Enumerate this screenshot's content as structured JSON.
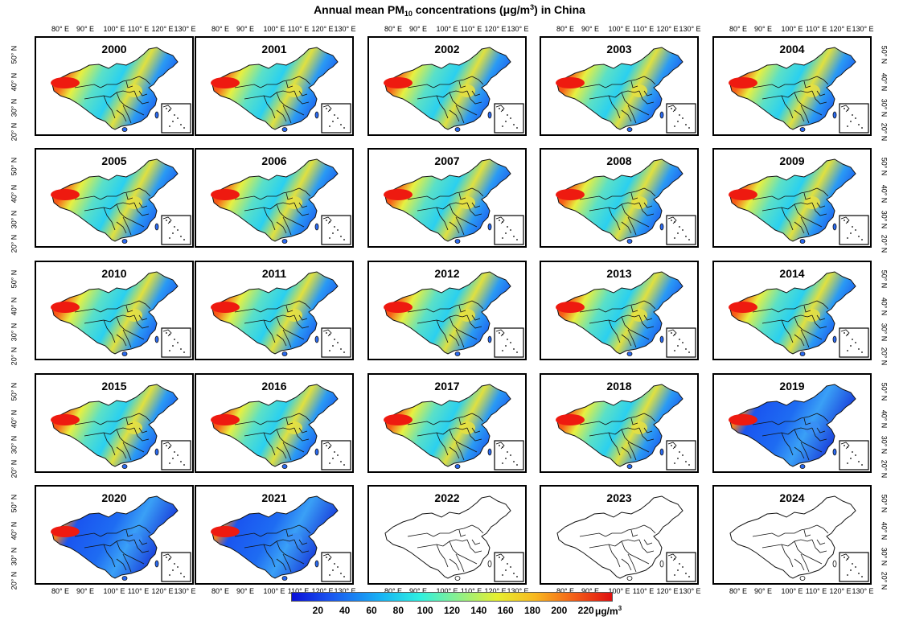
{
  "title": {
    "prefix": "Annual mean PM",
    "subscript": "10",
    "middle": " concentrations (μg/m",
    "superscript": "3",
    "suffix": ") in China"
  },
  "longitude_labels": [
    "80° E",
    "90° E",
    "100° E",
    "110° E",
    "120° E",
    "130° E"
  ],
  "latitude_labels": [
    "50° N",
    "40° N",
    "30° N",
    "20° N"
  ],
  "panels": [
    {
      "year": "2000",
      "has_data": true
    },
    {
      "year": "2001",
      "has_data": true
    },
    {
      "year": "2002",
      "has_data": true
    },
    {
      "year": "2003",
      "has_data": true
    },
    {
      "year": "2004",
      "has_data": true
    },
    {
      "year": "2005",
      "has_data": true
    },
    {
      "year": "2006",
      "has_data": true
    },
    {
      "year": "2007",
      "has_data": true
    },
    {
      "year": "2008",
      "has_data": true
    },
    {
      "year": "2009",
      "has_data": true
    },
    {
      "year": "2010",
      "has_data": true
    },
    {
      "year": "2011",
      "has_data": true
    },
    {
      "year": "2012",
      "has_data": true
    },
    {
      "year": "2013",
      "has_data": true
    },
    {
      "year": "2014",
      "has_data": true
    },
    {
      "year": "2015",
      "has_data": true
    },
    {
      "year": "2016",
      "has_data": true
    },
    {
      "year": "2017",
      "has_data": true
    },
    {
      "year": "2018",
      "has_data": true
    },
    {
      "year": "2019",
      "has_data": true
    },
    {
      "year": "2020",
      "has_data": true
    },
    {
      "year": "2021",
      "has_data": true
    },
    {
      "year": "2022",
      "has_data": false
    },
    {
      "year": "2023",
      "has_data": false
    },
    {
      "year": "2024",
      "has_data": false
    }
  ],
  "colorbar": {
    "ticks": [
      "20",
      "40",
      "60",
      "80",
      "100",
      "120",
      "140",
      "160",
      "180",
      "200",
      "220"
    ],
    "tick_values": [
      20,
      40,
      60,
      80,
      100,
      120,
      140,
      160,
      180,
      200,
      220
    ],
    "range": [
      0,
      240
    ],
    "unit_prefix": "μg/m",
    "unit_superscript": "3",
    "colors": [
      "#0a10d8",
      "#1a55f0",
      "#17b4f5",
      "#2ef0e0",
      "#8cf08c",
      "#e6f030",
      "#f8b820",
      "#f46018",
      "#e01010"
    ]
  }
}
